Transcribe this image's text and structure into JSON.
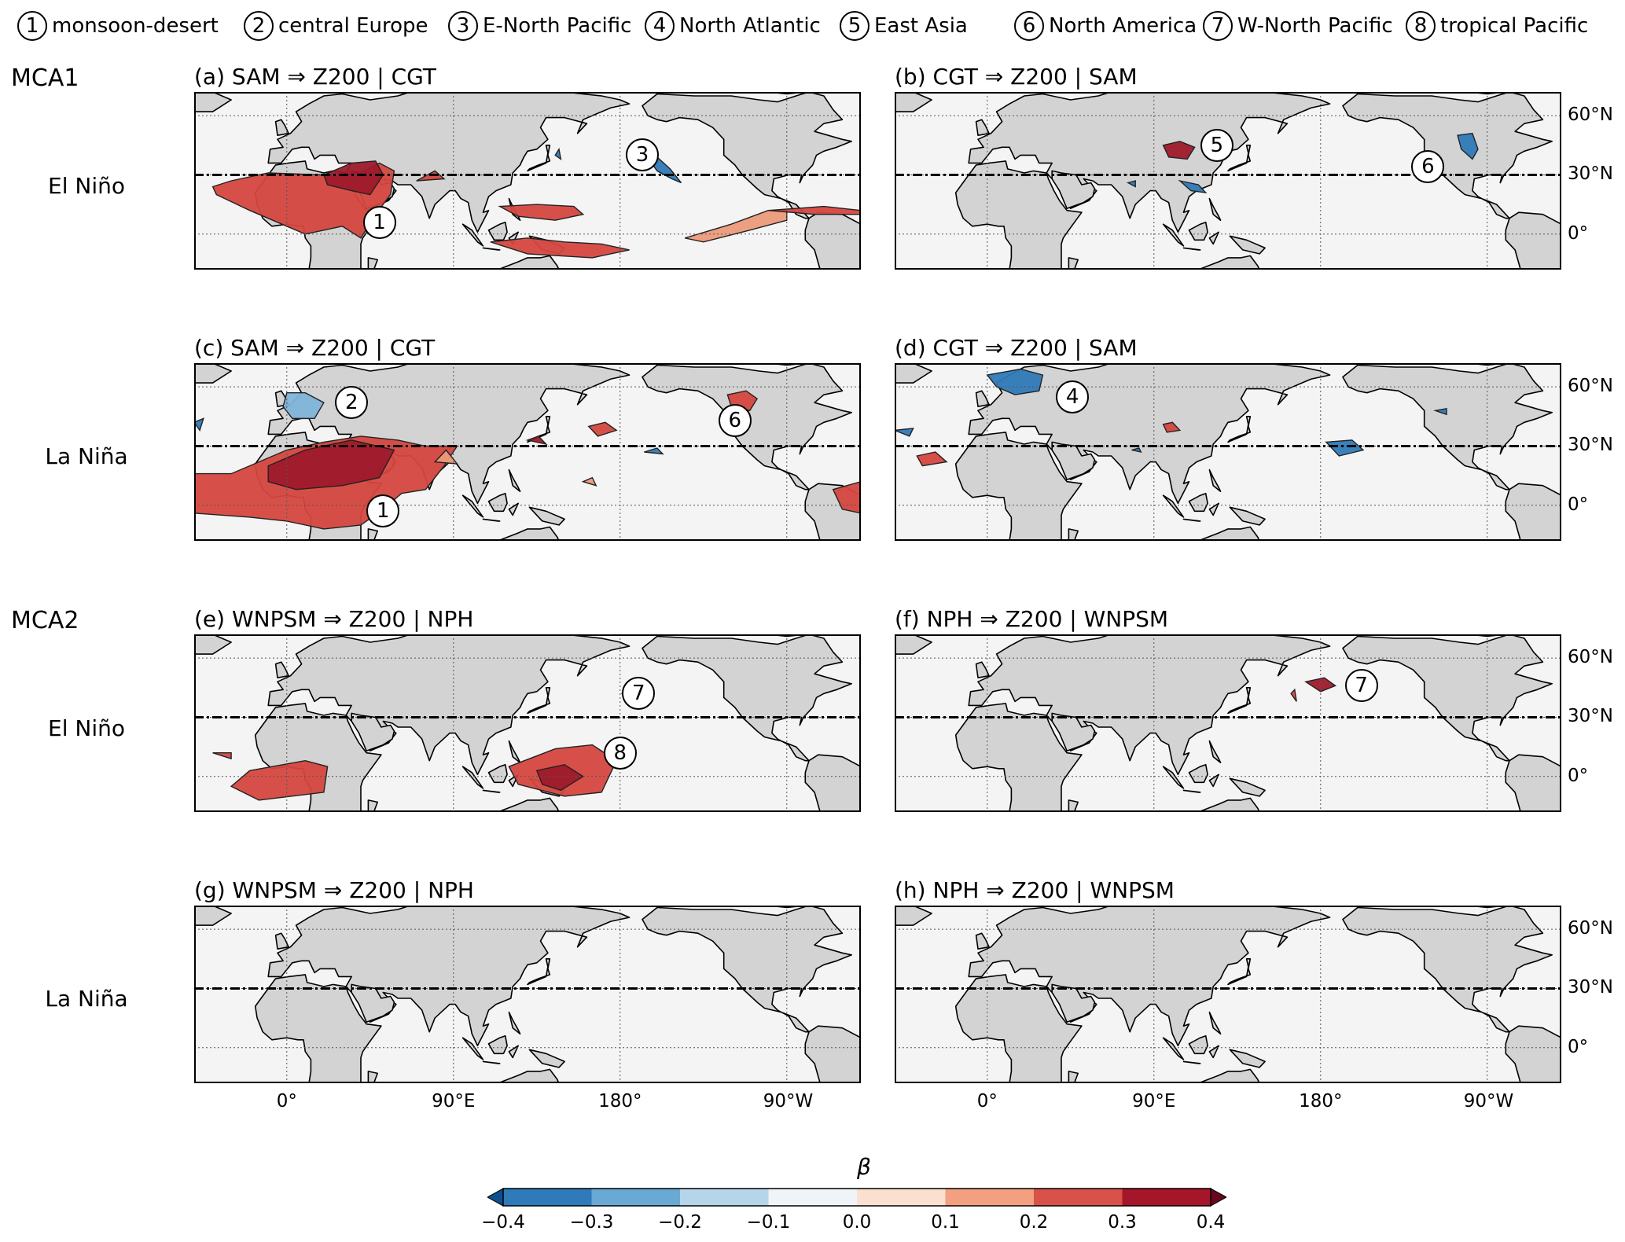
{
  "legend": [
    {
      "num": "1",
      "label": "monsoon-desert"
    },
    {
      "num": "2",
      "label": "central Europe"
    },
    {
      "num": "3",
      "label": "E-North Pacific"
    },
    {
      "num": "4",
      "label": "North Atlantic"
    },
    {
      "num": "5",
      "label": "East Asia"
    },
    {
      "num": "6",
      "label": "North America"
    },
    {
      "num": "7",
      "label": "W-North Pacific"
    },
    {
      "num": "8",
      "label": "tropical Pacific"
    }
  ],
  "sections": [
    "MCA1",
    "MCA2"
  ],
  "rows": [
    "El Niño",
    "La Niña",
    "El Niño",
    "La Niña"
  ],
  "panels": [
    {
      "title": "(a) SAM ⇒ Z200 | CGT",
      "markers": [
        "1",
        "3"
      ]
    },
    {
      "title": "(b) CGT ⇒ Z200 | SAM",
      "markers": [
        "5",
        "6"
      ]
    },
    {
      "title": "(c) SAM ⇒ Z200 | CGT",
      "markers": [
        "2",
        "1",
        "6"
      ]
    },
    {
      "title": "(d) CGT ⇒ Z200 | SAM",
      "markers": [
        "4"
      ]
    },
    {
      "title": "(e) WNPSM ⇒ Z200 | NPH",
      "markers": [
        "7",
        "8"
      ]
    },
    {
      "title": "(f) NPH ⇒ Z200 | WNPSM",
      "markers": [
        "7"
      ]
    },
    {
      "title": "(g) WNPSM ⇒ Z200 | NPH",
      "markers": []
    },
    {
      "title": "(h) NPH ⇒ Z200 | WNPSM",
      "markers": []
    }
  ],
  "lat_labels": [
    "60°N",
    "30°N",
    "0°"
  ],
  "lon_labels": [
    "0°",
    "90°E",
    "180°",
    "90°W"
  ],
  "colorbar": {
    "title": "β",
    "ticks": [
      "−0.4",
      "−0.3",
      "−0.2",
      "−0.1",
      "0.0",
      "0.1",
      "0.2",
      "0.3",
      "0.4"
    ],
    "colors": [
      "#0d4f8f",
      "#2f7ab8",
      "#6aa9d4",
      "#b7d5ea",
      "#eef4f8",
      "#fbe0cf",
      "#f2a07f",
      "#d8524a",
      "#a5162a",
      "#6a0720"
    ]
  },
  "colors": {
    "land": "#d3d3d3",
    "ocean": "#f4f4f4",
    "positive_strong": "#9e1a2c",
    "positive": "#d4473f",
    "positive_weak": "#ec9a7a",
    "negative": "#2f7ab8",
    "negative_weak": "#7fb4da"
  }
}
